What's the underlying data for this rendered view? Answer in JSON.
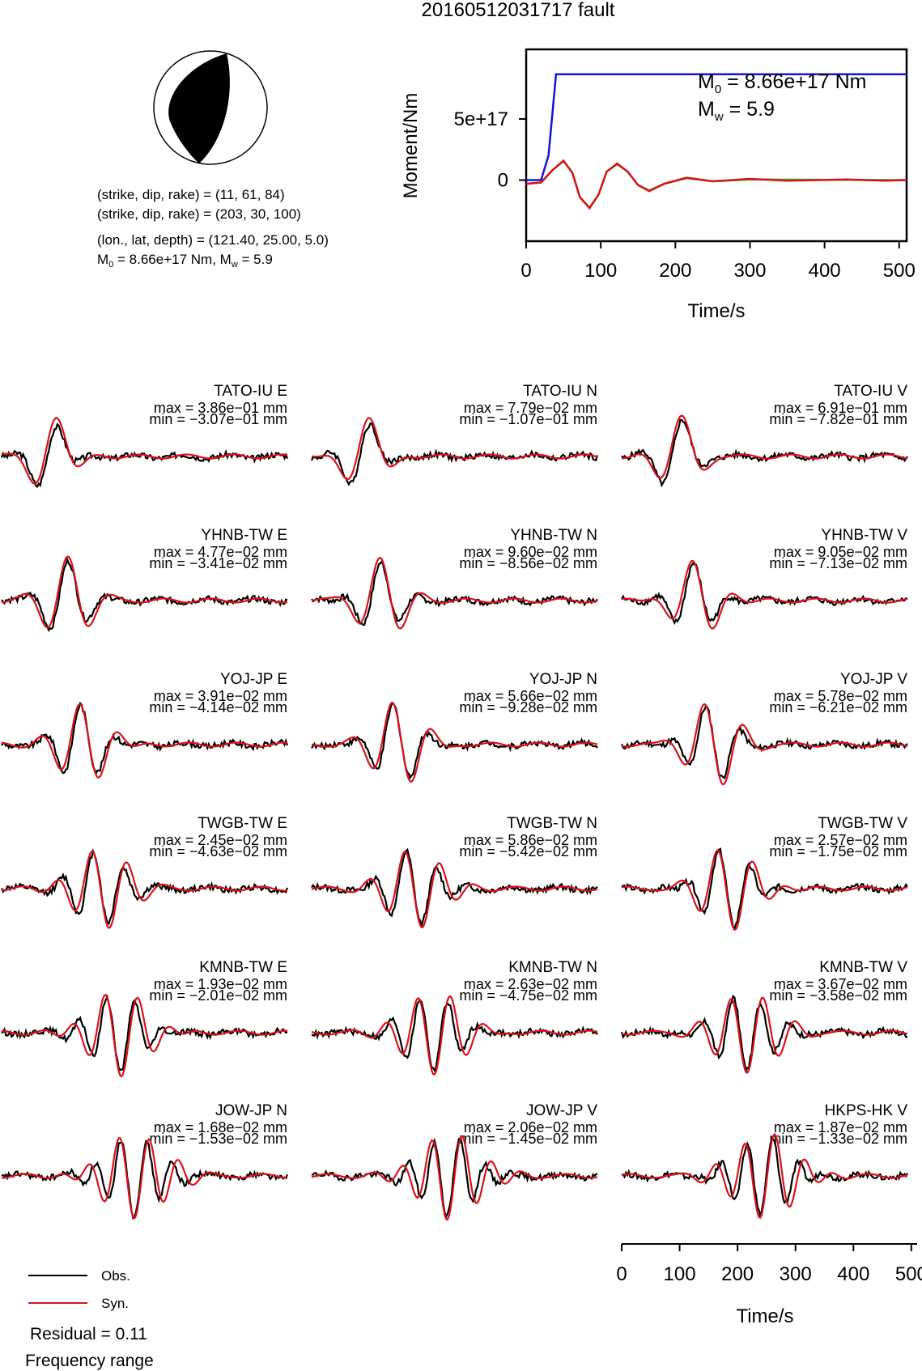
{
  "title": "20160512031717 fault",
  "mechanism": {
    "line1": "(strike, dip, rake) = (11, 61, 84)",
    "line2": "(strike, dip, rake) = (203, 30, 100)",
    "line3": "(lon., lat, depth) = (121.40, 25.00, 5.0)",
    "line4": "M",
    "line4_sub": "0",
    "line4_rest": " = 8.66e+17 Nm, M",
    "line4_sub2": "w",
    "line4_end": " = 5.9"
  },
  "colors": {
    "obs": "#000000",
    "syn": "#d9121b",
    "moment": "#1414d2",
    "stf_green": "#2fbf2f"
  },
  "chart_data": [
    {
      "type": "line",
      "ylabel": "Moment/Nm",
      "xlabel": "Time/s",
      "xlim": [
        0,
        510
      ],
      "x_ticks": [
        "0",
        "100",
        "200",
        "300",
        "400",
        "500"
      ],
      "y_ticks": [
        "0",
        "5e+17"
      ],
      "annotation_m0": {
        "symbol": "M",
        "sub": "0",
        "text": " = 8.66e+17 Nm"
      },
      "annotation_mw": {
        "symbol": "M",
        "sub": "w",
        "text": " = 5.9"
      },
      "series": [
        {
          "color": "blue",
          "points": [
            [
              0,
              0
            ],
            [
              20,
              0
            ],
            [
              30,
              2e+17
            ],
            [
              40,
              8.66e+17
            ],
            [
              510,
              8.66e+17
            ]
          ]
        },
        {
          "color": "red",
          "points": [
            [
              0,
              -3e+16
            ],
            [
              20,
              -2e+16
            ],
            [
              35,
              8e+16
            ],
            [
              50,
              1.6e+17
            ],
            [
              62,
              6e+16
            ],
            [
              72,
              -1.4e+17
            ],
            [
              85,
              -2.3e+17
            ],
            [
              97,
              -1.2e+17
            ],
            [
              108,
              7e+16
            ],
            [
              122,
              1.35e+17
            ],
            [
              136,
              7e+16
            ],
            [
              150,
              -4e+16
            ],
            [
              165,
              -9e+16
            ],
            [
              185,
              -3e+16
            ],
            [
              215,
              2e+16
            ],
            [
              250,
              -1e+16
            ],
            [
              300,
              1e+16
            ],
            [
              350,
              -5000000000000000.0
            ],
            [
              430,
              5000000000000000.0
            ],
            [
              480,
              -5000000000000000.0
            ],
            [
              510,
              0
            ]
          ]
        },
        {
          "color": "green",
          "points": [
            [
              0,
              -3e+16
            ],
            [
              20,
              -2e+16
            ],
            [
              35,
              8e+16
            ],
            [
              50,
              1.55e+17
            ],
            [
              62,
              6e+16
            ],
            [
              72,
              -1.4e+17
            ],
            [
              85,
              -2.25e+17
            ],
            [
              97,
              -1.2e+17
            ],
            [
              108,
              7e+16
            ],
            [
              122,
              1.3e+17
            ],
            [
              136,
              7e+16
            ],
            [
              150,
              -4e+16
            ],
            [
              165,
              -8.5e+16
            ],
            [
              185,
              -3e+16
            ],
            [
              215,
              1.5e+16
            ],
            [
              250,
              -1e+16
            ],
            [
              300,
              5000000000000000.0
            ],
            [
              510,
              0
            ]
          ]
        }
      ]
    },
    {
      "type": "line",
      "xlabel": "Time/s",
      "xlim": [
        0,
        510
      ],
      "x_ticks": [
        "0",
        "100",
        "200",
        "300",
        "400",
        "500"
      ],
      "panels": [
        {
          "station": "TATO-IU E",
          "max": "max = 3.86e−01 mm",
          "min": "min = −3.07e−01 mm"
        },
        {
          "station": "TATO-IU N",
          "max": "max = 7.79e−02 mm",
          "min": "min = −1.07e−01 mm"
        },
        {
          "station": "TATO-IU V",
          "max": "max = 6.91e−01 mm",
          "min": "min = −7.82e−01 mm"
        },
        {
          "station": "YHNB-TW E",
          "max": "max = 4.77e−02 mm",
          "min": "min = −3.41e−02 mm"
        },
        {
          "station": "YHNB-TW N",
          "max": "max = 9.60e−02 mm",
          "min": "min = −8.56e−02 mm"
        },
        {
          "station": "YHNB-TW V",
          "max": "max = 9.05e−02 mm",
          "min": "min = −7.13e−02 mm"
        },
        {
          "station": "YOJ-JP E",
          "max": "max = 3.91e−02 mm",
          "min": "min = −4.14e−02 mm"
        },
        {
          "station": "YOJ-JP N",
          "max": "max = 5.66e−02 mm",
          "min": "min = −9.28e−02 mm"
        },
        {
          "station": "YOJ-JP V",
          "max": "max = 5.78e−02 mm",
          "min": "min = −6.21e−02 mm"
        },
        {
          "station": "TWGB-TW E",
          "max": "max = 2.45e−02 mm",
          "min": "min = −4.63e−02 mm"
        },
        {
          "station": "TWGB-TW N",
          "max": "max = 5.86e−02 mm",
          "min": "min = −5.42e−02 mm"
        },
        {
          "station": "TWGB-TW V",
          "max": "max = 2.57e−02 mm",
          "min": "min = −1.75e−02 mm"
        },
        {
          "station": "KMNB-TW E",
          "max": "max = 1.93e−02 mm",
          "min": "min = −2.01e−02 mm"
        },
        {
          "station": "KMNB-TW N",
          "max": "max = 2.63e−02 mm",
          "min": "min = −4.75e−02 mm"
        },
        {
          "station": "KMNB-TW V",
          "max": "max = 3.67e−02 mm",
          "min": "min = −3.58e−02 mm"
        },
        {
          "station": "JOW-JP N",
          "max": "max = 1.68e−02 mm",
          "min": "min = −1.53e−02 mm"
        },
        {
          "station": "JOW-JP V",
          "max": "max = 2.06e−02 mm",
          "min": "min = −1.45e−02 mm"
        },
        {
          "station": "HKPS-HK V",
          "max": "max = 1.87e−02 mm",
          "min": "min = −1.33e−02 mm"
        }
      ]
    }
  ],
  "legend": {
    "obs": "Obs.",
    "syn": "Syn.",
    "residual": "Residual = 0.11",
    "freq": "Frequency range"
  }
}
